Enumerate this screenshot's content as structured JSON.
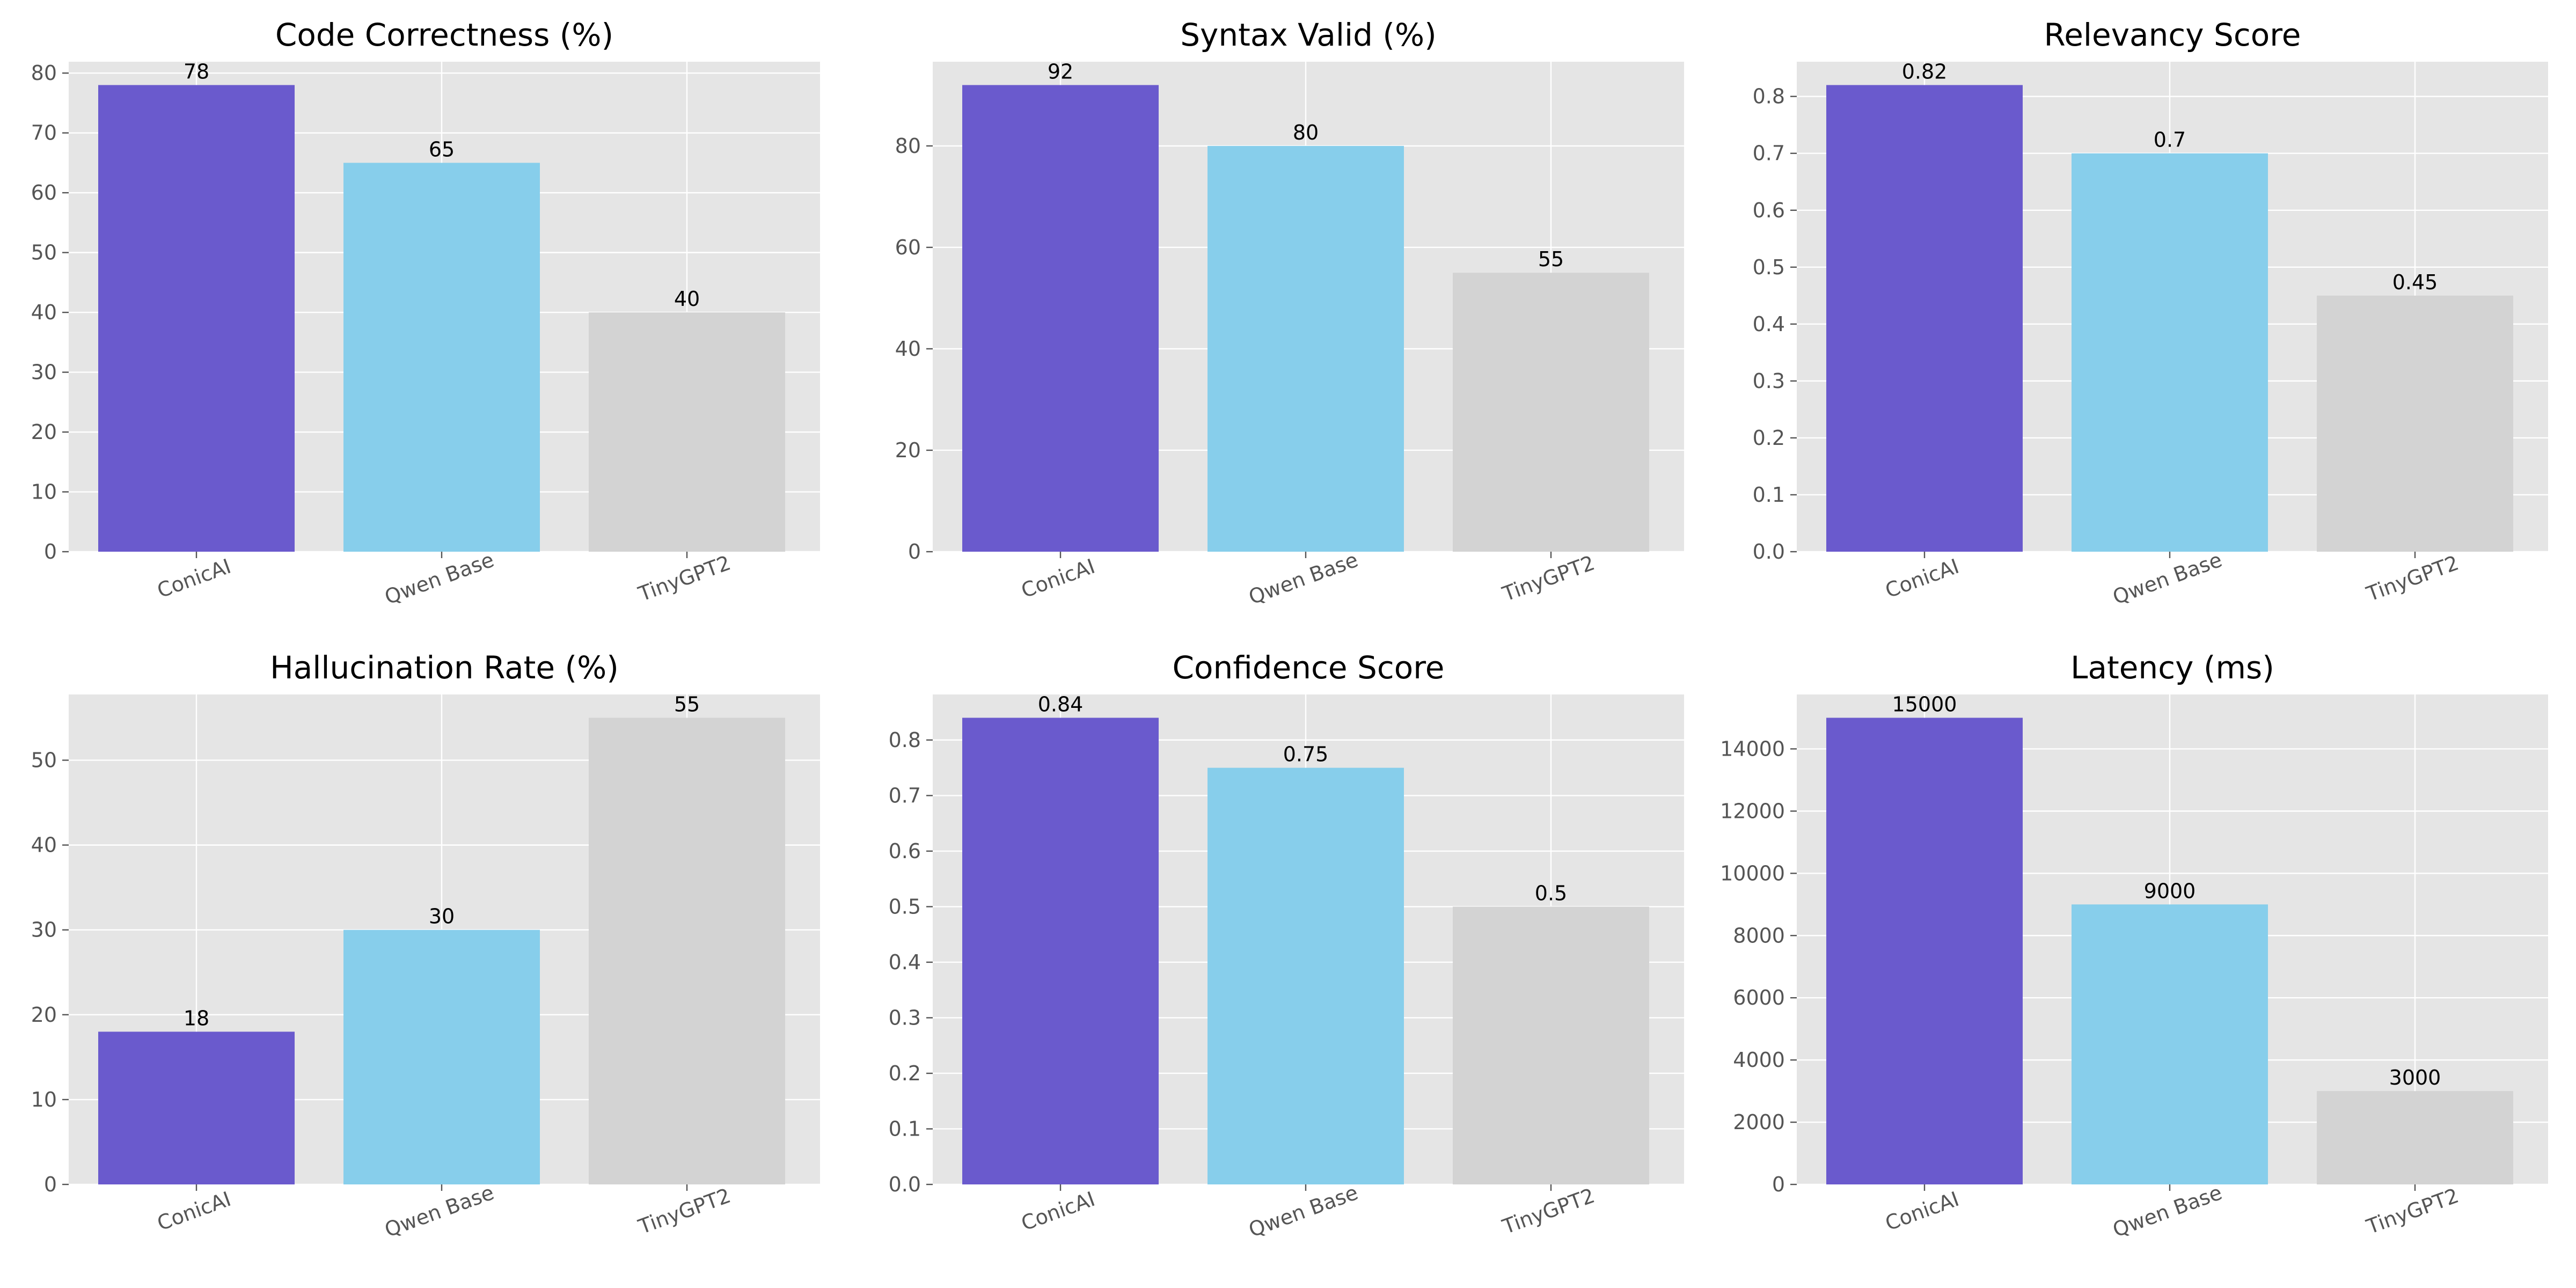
{
  "chart_data": [
    {
      "type": "bar",
      "title": "Code Correctness (%)",
      "categories": [
        "ConicAI",
        "Qwen Base",
        "TinyGPT2"
      ],
      "values": [
        78,
        65,
        40
      ],
      "value_labels": [
        "78",
        "65",
        "40"
      ],
      "ylim": [
        0,
        81.9
      ],
      "yticks": [
        0,
        10,
        20,
        30,
        40,
        50,
        60,
        70,
        80
      ],
      "ytick_labels": [
        "0",
        "10",
        "20",
        "30",
        "40",
        "50",
        "60",
        "70",
        "80"
      ],
      "grid": true
    },
    {
      "type": "bar",
      "title": "Syntax Valid (%)",
      "categories": [
        "ConicAI",
        "Qwen Base",
        "TinyGPT2"
      ],
      "values": [
        92,
        80,
        55
      ],
      "value_labels": [
        "92",
        "80",
        "55"
      ],
      "ylim": [
        0,
        96.6
      ],
      "yticks": [
        0,
        20,
        40,
        60,
        80
      ],
      "ytick_labels": [
        "0",
        "20",
        "40",
        "60",
        "80"
      ],
      "grid": true
    },
    {
      "type": "bar",
      "title": "Relevancy Score",
      "categories": [
        "ConicAI",
        "Qwen Base",
        "TinyGPT2"
      ],
      "values": [
        0.82,
        0.7,
        0.45
      ],
      "value_labels": [
        "0.82",
        "0.7",
        "0.45"
      ],
      "ylim": [
        0,
        0.861
      ],
      "yticks": [
        0,
        0.1,
        0.2,
        0.3,
        0.4,
        0.5,
        0.6,
        0.7,
        0.8
      ],
      "ytick_labels": [
        "0.0",
        "0.1",
        "0.2",
        "0.3",
        "0.4",
        "0.5",
        "0.6",
        "0.7",
        "0.8"
      ],
      "grid": true
    },
    {
      "type": "bar",
      "title": "Hallucination Rate (%)",
      "categories": [
        "ConicAI",
        "Qwen Base",
        "TinyGPT2"
      ],
      "values": [
        18,
        30,
        55
      ],
      "value_labels": [
        "18",
        "30",
        "55"
      ],
      "ylim": [
        0,
        57.75
      ],
      "yticks": [
        0,
        10,
        20,
        30,
        40,
        50
      ],
      "ytick_labels": [
        "0",
        "10",
        "20",
        "30",
        "40",
        "50"
      ],
      "grid": true
    },
    {
      "type": "bar",
      "title": "Confidence Score",
      "categories": [
        "ConicAI",
        "Qwen Base",
        "TinyGPT2"
      ],
      "values": [
        0.84,
        0.75,
        0.5
      ],
      "value_labels": [
        "0.84",
        "0.75",
        "0.5"
      ],
      "ylim": [
        0,
        0.882
      ],
      "yticks": [
        0,
        0.1,
        0.2,
        0.3,
        0.4,
        0.5,
        0.6,
        0.7,
        0.8
      ],
      "ytick_labels": [
        "0.0",
        "0.1",
        "0.2",
        "0.3",
        "0.4",
        "0.5",
        "0.6",
        "0.7",
        "0.8"
      ],
      "grid": true
    },
    {
      "type": "bar",
      "title": "Latency (ms)",
      "categories": [
        "ConicAI",
        "Qwen Base",
        "TinyGPT2"
      ],
      "values": [
        15000,
        9000,
        3000
      ],
      "value_labels": [
        "15000",
        "9000",
        "3000"
      ],
      "ylim": [
        0,
        15750
      ],
      "yticks": [
        0,
        2000,
        4000,
        6000,
        8000,
        10000,
        12000,
        14000
      ],
      "ytick_labels": [
        "0",
        "2000",
        "4000",
        "6000",
        "8000",
        "10000",
        "12000",
        "14000"
      ],
      "grid": true
    }
  ],
  "colors": {
    "series": [
      "#6a5acd",
      "#87ceeb",
      "#d3d3d3"
    ],
    "panel_background": "#e5e5e5",
    "grid": "#ffffff",
    "tick_text": "#555555",
    "title_text": "#000000"
  }
}
